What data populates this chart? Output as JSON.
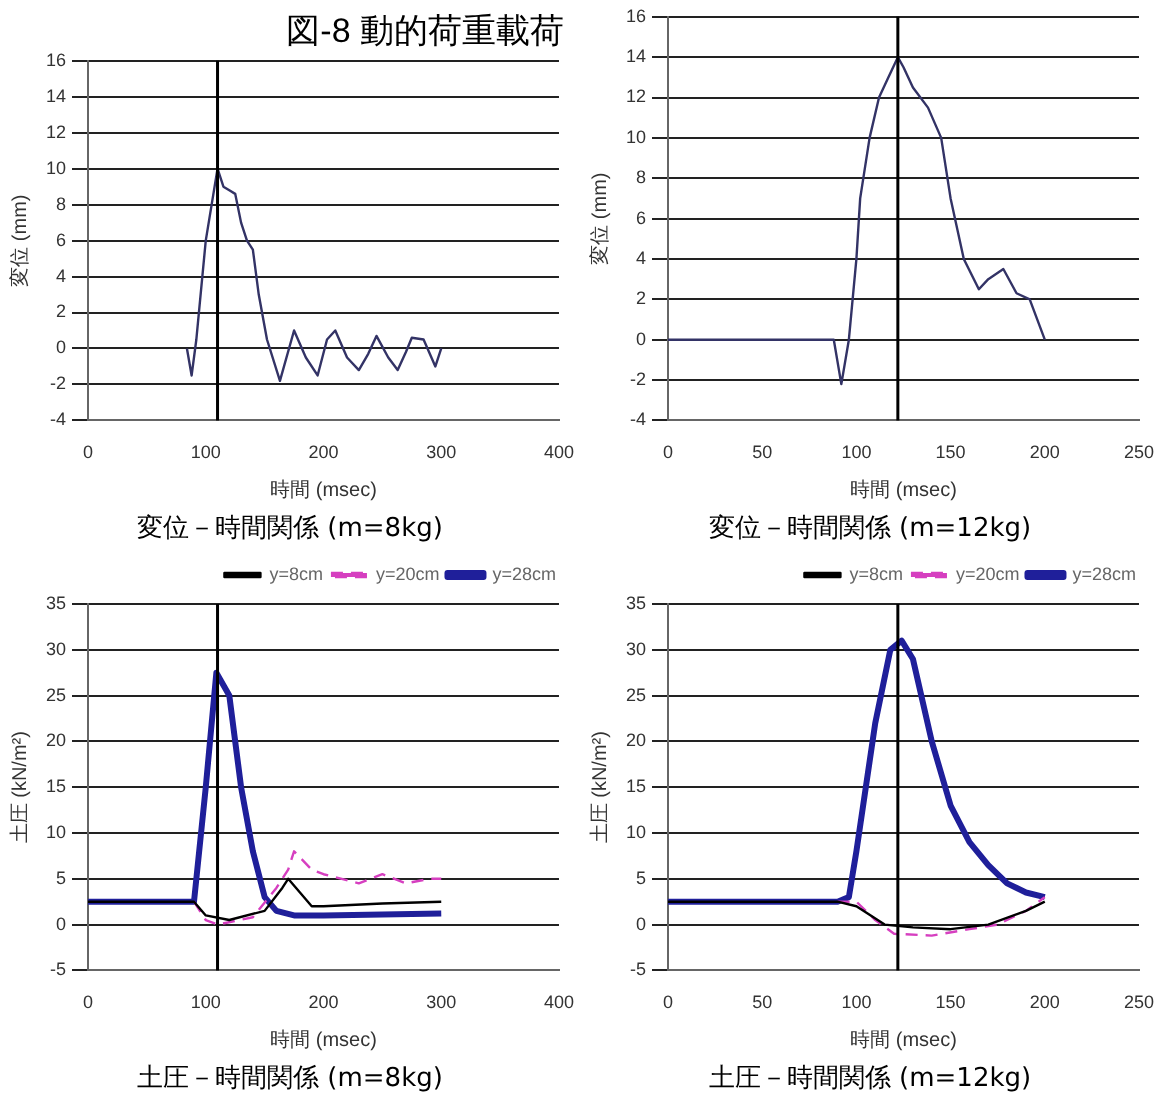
{
  "chart_data": [
    {
      "type": "line",
      "title": "図-8 動的荷重載荷",
      "xlabel": "時間 (msec)",
      "ylabel": "変位 (mm)",
      "xlim": [
        0,
        400
      ],
      "xticks": [
        0,
        100,
        200,
        300,
        400
      ],
      "ylim": [
        -4,
        16
      ],
      "yticks": [
        -4,
        -2,
        0,
        2,
        4,
        6,
        8,
        10,
        12,
        14,
        16
      ],
      "grid": "y",
      "marker": "none",
      "annotations": [
        "変位－時間関係 (m=8kg)"
      ],
      "ref_lines": [
        {
          "axis": "x",
          "value": 110,
          "color": "#000000"
        }
      ],
      "series": [
        {
          "color": "#333366",
          "x": [
            84,
            88,
            92,
            100,
            110,
            115,
            120,
            125,
            130,
            135,
            140,
            145,
            152,
            163,
            175,
            185,
            195,
            203,
            210,
            220,
            230,
            238,
            245,
            255,
            263,
            270,
            275,
            285,
            295,
            300
          ],
          "values": [
            0,
            -1.5,
            0.5,
            6,
            10,
            9,
            8.8,
            8.6,
            7,
            6,
            5.5,
            3,
            0.5,
            -1.8,
            1,
            -0.5,
            -1.5,
            0.5,
            1,
            -0.5,
            -1.2,
            -0.3,
            0.7,
            -0.5,
            -1.2,
            -0.2,
            0.6,
            0.5,
            -1,
            0
          ]
        }
      ]
    },
    {
      "type": "line",
      "xlabel": "時間 (msec)",
      "ylabel": "変位 (mm)",
      "xlim": [
        0,
        250
      ],
      "xticks": [
        0,
        50,
        100,
        150,
        200,
        250
      ],
      "ylim": [
        -4,
        16
      ],
      "yticks": [
        -4,
        -2,
        0,
        2,
        4,
        6,
        8,
        10,
        12,
        14,
        16
      ],
      "grid": "y",
      "marker": "none",
      "annotations": [
        "変位－時間関係 (m=12kg)"
      ],
      "ref_lines": [
        {
          "axis": "x",
          "value": 122,
          "color": "#000000"
        }
      ],
      "series": [
        {
          "color": "#333366",
          "x": [
            0,
            88,
            92,
            96,
            100,
            102,
            107,
            112,
            117,
            122,
            125,
            130,
            138,
            145,
            150,
            157,
            165,
            170,
            178,
            185,
            192,
            200
          ],
          "values": [
            0,
            0,
            -2.2,
            0,
            4,
            7,
            10,
            12,
            13,
            14,
            13.5,
            12.5,
            11.5,
            10,
            7,
            4,
            2.5,
            3,
            3.5,
            2.3,
            2,
            0
          ]
        }
      ]
    },
    {
      "type": "line",
      "xlabel": "時間 (msec)",
      "ylabel": "土圧 (kN/m²)",
      "xlim": [
        0,
        400
      ],
      "xticks": [
        0,
        100,
        200,
        300,
        400
      ],
      "ylim": [
        -5,
        35
      ],
      "yticks": [
        -5,
        0,
        5,
        10,
        15,
        20,
        25,
        30,
        35
      ],
      "grid": "y",
      "marker": "none",
      "legend": "top right",
      "annotations": [
        "土圧－時間関係 (m=8kg)"
      ],
      "ref_lines": [
        {
          "axis": "x",
          "value": 110,
          "color": "#000000"
        }
      ],
      "series": [
        {
          "name": "y=8cm",
          "color": "#000000",
          "line_style": "solid",
          "x": [
            0,
            90,
            100,
            120,
            150,
            165,
            170,
            180,
            190,
            200,
            250,
            300
          ],
          "values": [
            2.5,
            2.5,
            1,
            0.5,
            1.5,
            4,
            5,
            3.5,
            2,
            2,
            2.3,
            2.5
          ]
        },
        {
          "name": "y=20cm",
          "color": "#d63fc0",
          "line_style": "dashed",
          "x": [
            90,
            100,
            110,
            140,
            160,
            170,
            175,
            190,
            200,
            230,
            250,
            270,
            290,
            300
          ],
          "values": [
            2.5,
            0.5,
            0,
            0.8,
            4,
            6,
            8,
            6,
            5.5,
            4.5,
            5.5,
            4.5,
            5,
            5
          ]
        },
        {
          "name": "y=28cm",
          "color": "#1f1f9a",
          "line_style": "solid",
          "x": [
            0,
            90,
            100,
            109,
            120,
            130,
            140,
            150,
            160,
            175,
            200,
            300
          ],
          "values": [
            2.5,
            2.5,
            15,
            27.5,
            25,
            15,
            8,
            3,
            1.5,
            1,
            1,
            1.2
          ]
        }
      ]
    },
    {
      "type": "line",
      "xlabel": "時間 (msec)",
      "ylabel": "土圧 (kN/m²)",
      "xlim": [
        0,
        250
      ],
      "xticks": [
        0,
        50,
        100,
        150,
        200,
        250
      ],
      "ylim": [
        -5,
        35
      ],
      "yticks": [
        -5,
        0,
        5,
        10,
        15,
        20,
        25,
        30,
        35
      ],
      "grid": "y",
      "marker": "none",
      "legend": "top right",
      "annotations": [
        "土圧－時間関係 (m=12kg)"
      ],
      "ref_lines": [
        {
          "axis": "x",
          "value": 122,
          "color": "#000000"
        }
      ],
      "series": [
        {
          "name": "y=8cm",
          "color": "#000000",
          "line_style": "solid",
          "x": [
            0,
            90,
            100,
            115,
            130,
            150,
            170,
            190,
            200
          ],
          "values": [
            2.5,
            2.5,
            2,
            0,
            -0.3,
            -0.5,
            0,
            1.5,
            2.5
          ]
        },
        {
          "name": "y=20cm",
          "color": "#d63fc0",
          "line_style": "dashed",
          "x": [
            90,
            100,
            110,
            120,
            140,
            160,
            175,
            190,
            200
          ],
          "values": [
            2.5,
            2.5,
            0.5,
            -1,
            -1.2,
            -0.5,
            0,
            1.5,
            3
          ]
        },
        {
          "name": "y=28cm",
          "color": "#1f1f9a",
          "line_style": "solid",
          "x": [
            0,
            90,
            96,
            100,
            110,
            118,
            124,
            130,
            140,
            150,
            160,
            170,
            180,
            190,
            200
          ],
          "values": [
            2.5,
            2.5,
            3,
            8,
            22,
            30,
            31,
            29,
            20,
            13,
            9,
            6.5,
            4.5,
            3.5,
            3
          ]
        }
      ]
    }
  ]
}
